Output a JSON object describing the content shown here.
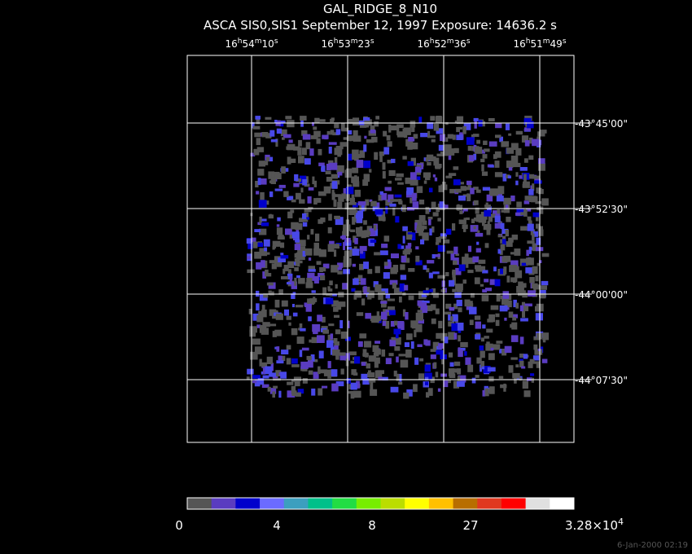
{
  "header": {
    "title": "GAL_RIDGE_8_N10",
    "subtitle": "ASCA SIS0,SIS1 September 12, 1997 Exposure: 14636.2 s"
  },
  "ra_labels": [
    {
      "parts": [
        "16",
        "h",
        "54",
        "m",
        "10",
        "s"
      ]
    },
    {
      "parts": [
        "16",
        "h",
        "53",
        "m",
        "23",
        "s"
      ]
    },
    {
      "parts": [
        "16",
        "h",
        "52",
        "m",
        "36",
        "s"
      ]
    },
    {
      "parts": [
        "16",
        "h",
        "51",
        "m",
        "49",
        "s"
      ]
    }
  ],
  "dec_labels": [
    "-43°45'00\"",
    "-43°52'30\"",
    "-44°00'00\"",
    "-44°07'30\""
  ],
  "colorbar": {
    "colors": [
      "#555555",
      "#5a3cc0",
      "#0000cc",
      "#6b6bff",
      "#3c9fbf",
      "#00c08a",
      "#22dd44",
      "#77ee00",
      "#bbdd00",
      "#ffff00",
      "#ffc000",
      "#b86e00",
      "#e03820",
      "#ff0000",
      "#e0e0e0",
      "#ffffff"
    ],
    "labels": [
      {
        "parts": [
          "0"
        ]
      },
      {
        "parts": [
          "4"
        ]
      },
      {
        "parts": [
          "8"
        ]
      },
      {
        "parts": [
          "27"
        ]
      },
      {
        "parts": [
          "3.28×10",
          "4"
        ]
      }
    ]
  },
  "timestamp": "6-Jan-2000 02:19"
}
